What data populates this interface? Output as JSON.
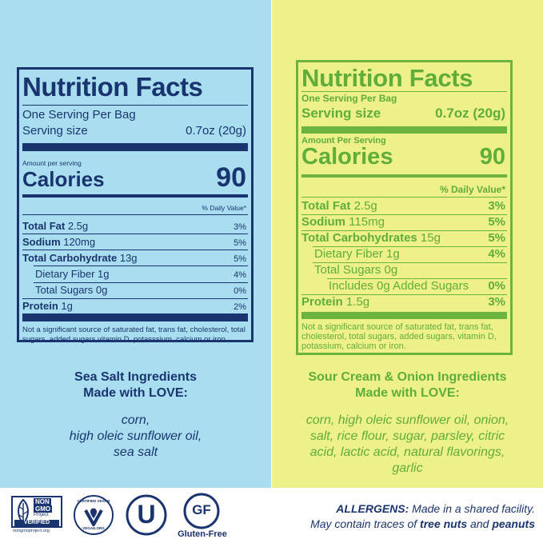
{
  "colors": {
    "left_bg": "#a9def0",
    "right_bg": "#eef08a",
    "navy": "#1a3470",
    "green": "#5fae3a"
  },
  "left_label": {
    "title": "Nutrition Facts",
    "servings": "One Serving Per Bag",
    "serving_size_label": "Serving size",
    "serving_size_value": "0.7oz (20g)",
    "amount_per_serving": "Amount per serving",
    "calories_label": "Calories",
    "calories_value": "90",
    "dv_header": "% Daily Value*",
    "rows": [
      {
        "name": "Total Fat",
        "amount": "2.5g",
        "dv": "3%"
      },
      {
        "name": "Sodium",
        "amount": "120mg",
        "dv": "5%"
      },
      {
        "name": "Total Carbohydrate",
        "amount": "13g",
        "dv": "5%"
      },
      {
        "name": "Dietary Fiber 1g",
        "amount": "",
        "dv": "4%"
      },
      {
        "name": "Total Sugars 0g",
        "amount": "",
        "dv": "0%"
      },
      {
        "name": "Protein",
        "amount": "1g",
        "dv": "2%"
      }
    ],
    "footnote": "Not a significant source of saturated fat, trans fat, cholesterol, total sugars, added sugars,vitamin D, potasssium, calcium or iron"
  },
  "right_label": {
    "title": "Nutrition Facts",
    "servings": "One Serving Per Bag",
    "serving_size_label": "Serving size",
    "serving_size_value": "0.7oz (20g)",
    "amount_per_serving": "Amount Per Serving",
    "calories_label": "Calories",
    "calories_value": "90",
    "dv_header": "% Daily Value*",
    "rows": [
      {
        "name": "Total Fat",
        "amount": "2.5g",
        "dv": "3%"
      },
      {
        "name": "Sodium",
        "amount": "115mg",
        "dv": "5%"
      },
      {
        "name": "Total Carbohydrates",
        "amount": "15g",
        "dv": "5%"
      },
      {
        "name": "Dietary Fiber 1g",
        "amount": "",
        "dv": "4%"
      },
      {
        "name": "Total Sugars 0g",
        "amount": "",
        "dv": ""
      },
      {
        "name": "Includes 0g Added Sugars",
        "amount": "",
        "dv": "0%"
      },
      {
        "name": "Protein",
        "amount": "1.5g",
        "dv": "3%"
      }
    ],
    "footnote": "Not a significant source of saturated fat, trans fat, cholesterol, total sugars, added sugars, vitamin D, potassium, calcium or iron."
  },
  "left_ingredients": {
    "heading_1": "Sea Salt Ingredients",
    "heading_2": "Made with LOVE:",
    "line_1": "corn,",
    "line_2": "high oleic sunflower oil,",
    "line_3": "sea salt"
  },
  "right_ingredients": {
    "heading_1": "Sour Cream & Onion Ingredients",
    "heading_2": "Made with LOVE:",
    "line_1": "corn, high oleic sunflower oil, onion,",
    "line_2": "salt, rice flour, sugar, parsley, citric",
    "line_3": "acid, lactic acid, natural flavorings,",
    "line_4": "garlic"
  },
  "badges": {
    "nongmo_1": "NON",
    "nongmo_2": "GMO",
    "nongmo_3": "Project",
    "nongmo_4": "VERIFIED",
    "nongmo_url": "nongmoproject.org",
    "vegan_top": "CERTIFIED VEGAN",
    "vegan_bottom": "VEGAN.ORG",
    "kosher_mark": "U",
    "gf_mark": "GF",
    "gf_label": "Gluten-Free"
  },
  "allergens": {
    "label": "ALLERGENS:",
    "line_1_rest": " Made in a shared facility.",
    "line_2_pre": "May contain traces of ",
    "tree_nuts": "tree nuts",
    "and": " and ",
    "peanuts": "peanuts"
  }
}
